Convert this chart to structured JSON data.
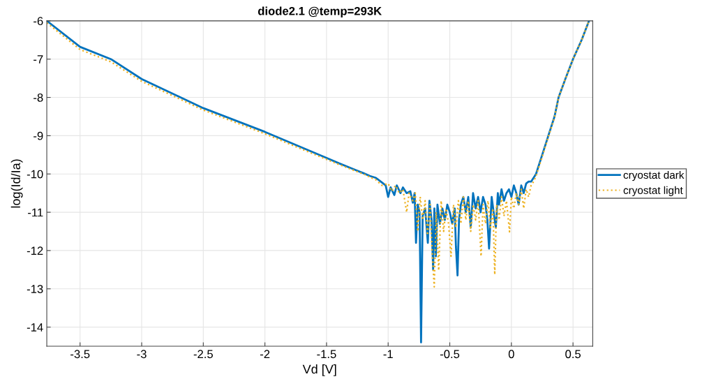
{
  "chart_data": {
    "type": "line",
    "title": "diode2.1 @temp=293K",
    "xlabel": "Vd [V]",
    "ylabel": "log(Id/Ia)",
    "xlim": [
      -3.77,
      0.66
    ],
    "ylim": [
      -14.5,
      -6
    ],
    "xticks": [
      -3.5,
      -3,
      -2.5,
      -2,
      -1.5,
      -1,
      -0.5,
      0,
      0.5
    ],
    "yticks": [
      -14,
      -13,
      -12,
      -11,
      -10,
      -9,
      -8,
      -7,
      -6
    ],
    "grid": true,
    "legend": "right",
    "marker": "none",
    "series": [
      {
        "name": "cryostat dark",
        "color": "#0072bd",
        "line_style": "solid",
        "x": [
          -3.77,
          -3.5,
          -3.25,
          -3.0,
          -2.5,
          -2.0,
          -1.5,
          -1.4,
          -1.3,
          -1.2,
          -1.15,
          -1.1,
          -1.06,
          -1.02,
          -1.0,
          -0.98,
          -0.95,
          -0.93,
          -0.9,
          -0.88,
          -0.85,
          -0.82,
          -0.8,
          -0.785,
          -0.774,
          -0.76,
          -0.745,
          -0.733,
          -0.72,
          -0.7,
          -0.69,
          -0.678,
          -0.665,
          -0.648,
          -0.635,
          -0.625,
          -0.613,
          -0.6,
          -0.58,
          -0.56,
          -0.54,
          -0.52,
          -0.5,
          -0.48,
          -0.46,
          -0.45,
          -0.437,
          -0.425,
          -0.41,
          -0.39,
          -0.37,
          -0.35,
          -0.33,
          -0.311,
          -0.29,
          -0.27,
          -0.25,
          -0.23,
          -0.21,
          -0.195,
          -0.181,
          -0.16,
          -0.14,
          -0.126,
          -0.11,
          -0.1,
          -0.08,
          -0.06,
          -0.04,
          -0.02,
          0.0,
          0.02,
          0.04,
          0.059,
          0.08,
          0.1,
          0.12,
          0.14,
          0.16,
          0.18,
          0.2,
          0.25,
          0.3,
          0.35,
          0.383,
          0.44,
          0.5,
          0.57,
          0.63
        ],
        "values": [
          -6.0,
          -6.68,
          -7.0,
          -7.52,
          -8.28,
          -8.9,
          -9.58,
          -9.72,
          -9.85,
          -9.98,
          -10.05,
          -10.1,
          -10.2,
          -10.3,
          -10.6,
          -10.35,
          -10.55,
          -10.3,
          -10.5,
          -10.35,
          -10.5,
          -10.45,
          -10.75,
          -10.5,
          -11.8,
          -10.8,
          -11.0,
          -14.4,
          -11.1,
          -10.9,
          -11.3,
          -11.8,
          -10.7,
          -11.2,
          -12.5,
          -10.9,
          -12.15,
          -10.8,
          -11.3,
          -10.9,
          -11.2,
          -10.8,
          -11.0,
          -11.3,
          -10.9,
          -11.9,
          -12.65,
          -11.2,
          -10.8,
          -10.6,
          -11.0,
          -10.6,
          -11.4,
          -10.5,
          -10.9,
          -10.6,
          -11.0,
          -10.6,
          -10.8,
          -11.2,
          -11.95,
          -10.6,
          -11.1,
          -11.4,
          -10.5,
          -10.8,
          -10.4,
          -10.7,
          -10.5,
          -10.4,
          -10.6,
          -10.3,
          -10.5,
          -10.8,
          -10.3,
          -10.5,
          -10.25,
          -10.2,
          -10.2,
          -10.1,
          -10.0,
          -9.5,
          -9.0,
          -8.5,
          -8.0,
          -7.5,
          -7.0,
          -6.5,
          -6.0
        ]
      },
      {
        "name": "cryostat light",
        "color": "#edb120",
        "line_style": "dotted",
        "x": [
          -3.77,
          -3.5,
          -3.25,
          -3.0,
          -2.5,
          -2.0,
          -1.5,
          -1.4,
          -1.3,
          -1.2,
          -1.15,
          -1.1,
          -1.05,
          -1.0,
          -0.97,
          -0.94,
          -0.91,
          -0.88,
          -0.85,
          -0.83,
          -0.8,
          -0.78,
          -0.76,
          -0.74,
          -0.72,
          -0.7,
          -0.68,
          -0.66,
          -0.645,
          -0.626,
          -0.61,
          -0.59,
          -0.57,
          -0.55,
          -0.53,
          -0.51,
          -0.49,
          -0.47,
          -0.45,
          -0.43,
          -0.41,
          -0.39,
          -0.37,
          -0.35,
          -0.33,
          -0.31,
          -0.29,
          -0.27,
          -0.246,
          -0.23,
          -0.21,
          -0.19,
          -0.17,
          -0.15,
          -0.135,
          -0.12,
          -0.1,
          -0.08,
          -0.06,
          -0.04,
          -0.015,
          0.0,
          0.02,
          0.04,
          0.06,
          0.08,
          0.1,
          0.12,
          0.14,
          0.16,
          0.18,
          0.2,
          0.25,
          0.3,
          0.35,
          0.383,
          0.44,
          0.5,
          0.57,
          0.63
        ],
        "values": [
          -6.05,
          -6.75,
          -7.07,
          -7.58,
          -8.33,
          -8.95,
          -9.62,
          -9.75,
          -9.88,
          -10.0,
          -10.08,
          -10.15,
          -10.3,
          -10.25,
          -10.45,
          -10.3,
          -10.5,
          -10.4,
          -11.0,
          -10.5,
          -10.7,
          -10.5,
          -11.5,
          -10.6,
          -11.2,
          -10.7,
          -11.6,
          -10.8,
          -11.9,
          -12.95,
          -11.0,
          -12.52,
          -10.7,
          -11.5,
          -10.9,
          -11.3,
          -12.15,
          -10.8,
          -11.4,
          -10.7,
          -11.3,
          -10.6,
          -11.2,
          -10.7,
          -11.5,
          -10.8,
          -11.2,
          -10.7,
          -12.15,
          -10.8,
          -11.3,
          -10.7,
          -11.4,
          -10.9,
          -12.63,
          -10.8,
          -11.2,
          -10.6,
          -11.1,
          -10.7,
          -11.51,
          -10.6,
          -10.9,
          -10.5,
          -10.8,
          -10.4,
          -10.9,
          -10.4,
          -10.6,
          -10.3,
          -10.2,
          -10.05,
          -9.55,
          -9.03,
          -8.52,
          -8.0,
          -7.5,
          -7.0,
          -6.5,
          -6.0
        ]
      }
    ]
  }
}
